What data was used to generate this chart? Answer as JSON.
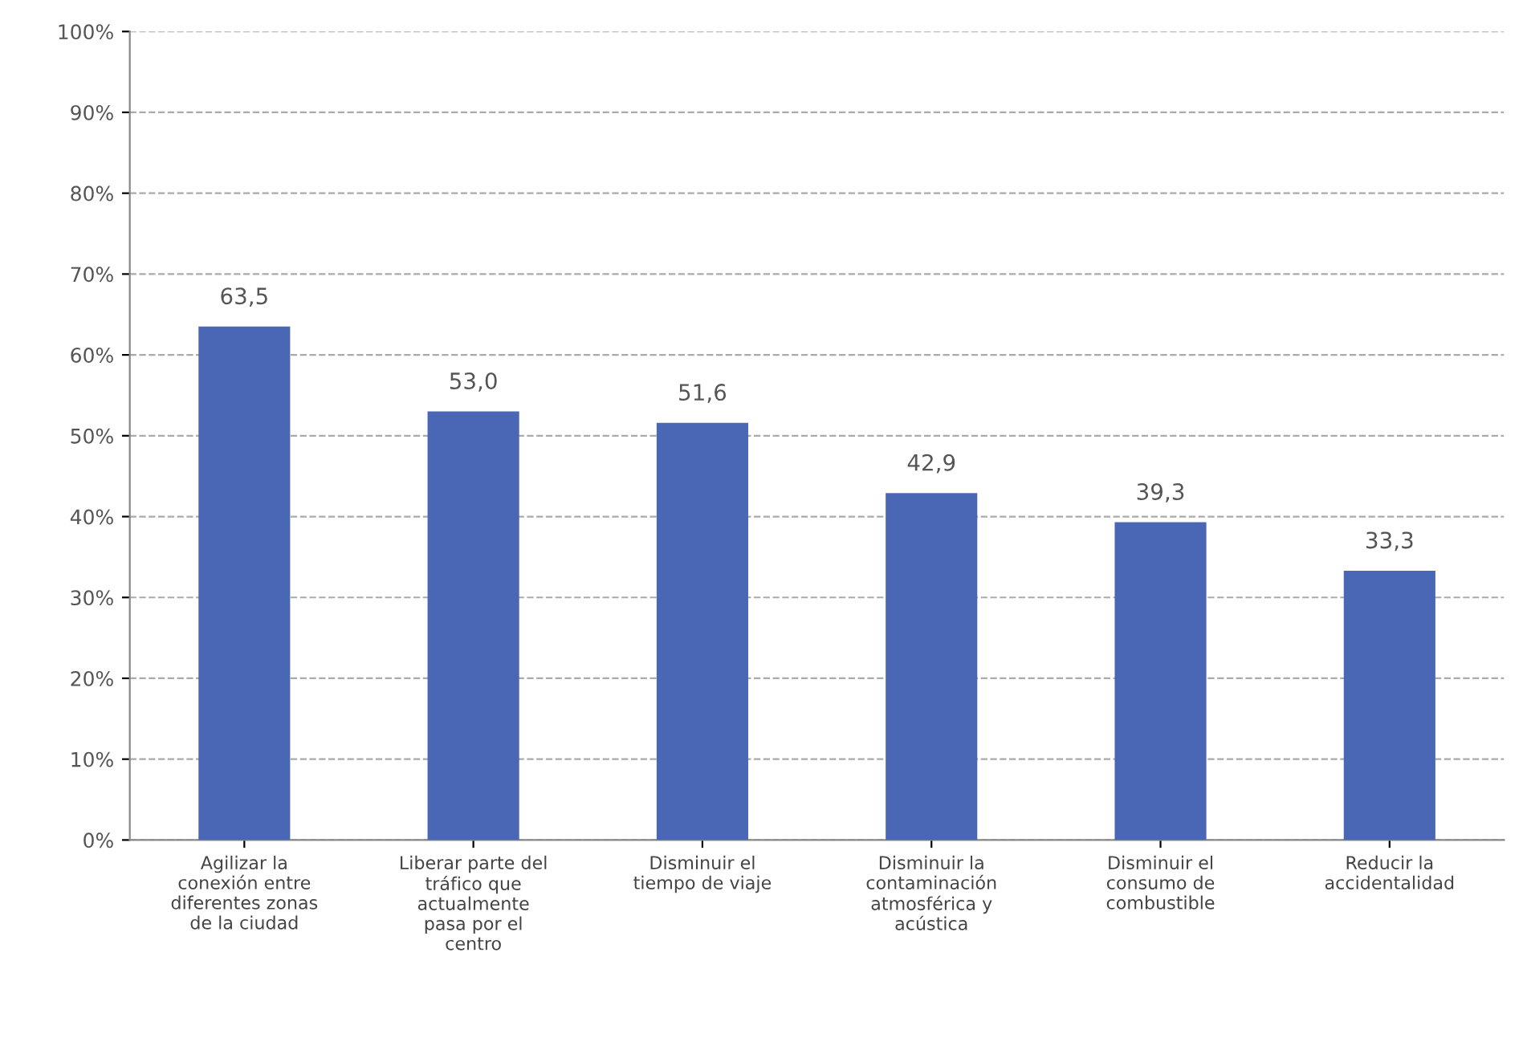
{
  "chart_data": {
    "type": "bar",
    "categories": [
      "Agilizar la\nconexión entre\ndiferentes zonas\nde la ciudad",
      "Liberar parte del\ntráfico que\nactualmente\npasa por el\ncentro",
      "Disminuir el\ntiempo de viaje",
      "Disminuir la\ncontaminación\natmosférica y\nacústica",
      "Disminuir el\nconsumo de\ncombustible",
      "Reducir la\naccidentalidad"
    ],
    "values": [
      63.5,
      53.0,
      51.6,
      42.9,
      39.3,
      33.3
    ],
    "value_labels": [
      "63,5",
      "53,0",
      "51,6",
      "42,9",
      "39,3",
      "33,3"
    ],
    "color": "#4a67b5",
    "ylim": [
      0,
      100
    ],
    "yticks": [
      {
        "value": 0,
        "label": "0%"
      },
      {
        "value": 10,
        "label": "10%"
      },
      {
        "value": 20,
        "label": "20%"
      },
      {
        "value": 30,
        "label": "30%"
      },
      {
        "value": 40,
        "label": "40%"
      },
      {
        "value": 50,
        "label": "50%"
      },
      {
        "value": 60,
        "label": "60%"
      },
      {
        "value": 70,
        "label": "70%"
      },
      {
        "value": 80,
        "label": "80%"
      },
      {
        "value": 90,
        "label": "90%"
      },
      {
        "value": 100,
        "label": "100%"
      }
    ],
    "grid": "y"
  }
}
